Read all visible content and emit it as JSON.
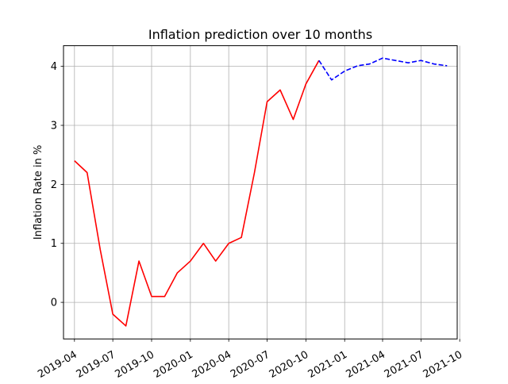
{
  "chart_data": {
    "type": "line",
    "title": "Inflation prediction over 10 months",
    "xlabel": "",
    "ylabel": "Inflation Rate in %",
    "grid": true,
    "ylim": [
      -0.62,
      4.35
    ],
    "xlim": [
      "2019-03-06",
      "2021-09-25"
    ],
    "yticks": [
      0,
      1,
      2,
      3,
      4
    ],
    "ytick_labels": [
      "0",
      "1",
      "2",
      "3",
      "4"
    ],
    "xticks": [
      "2019-04-01",
      "2019-07-01",
      "2019-10-01",
      "2020-01-01",
      "2020-04-01",
      "2020-07-01",
      "2020-10-01",
      "2021-01-01",
      "2021-04-01",
      "2021-07-01",
      "2021-10-01"
    ],
    "xtick_labels": [
      "2019-04",
      "2019-07",
      "2019-10",
      "2020-01",
      "2020-04",
      "2020-07",
      "2020-10",
      "2021-01",
      "2021-04",
      "2021-07",
      "2021-10"
    ],
    "series": [
      {
        "color": "#ff0000",
        "style": "solid",
        "x": [
          "2019-04-01",
          "2019-05-01",
          "2019-06-01",
          "2019-07-01",
          "2019-08-01",
          "2019-09-01",
          "2019-10-01",
          "2019-11-01",
          "2019-12-01",
          "2020-01-01",
          "2020-02-01",
          "2020-03-01",
          "2020-04-01",
          "2020-05-01",
          "2020-06-01",
          "2020-07-01",
          "2020-08-01",
          "2020-09-01",
          "2020-10-01",
          "2020-11-01"
        ],
        "values": [
          2.4,
          2.2,
          0.9,
          -0.2,
          -0.4,
          0.7,
          0.1,
          0.1,
          0.5,
          0.7,
          1.0,
          0.7,
          1.0,
          1.1,
          2.2,
          3.4,
          3.6,
          3.1,
          3.7,
          4.1
        ]
      },
      {
        "color": "#0000ff",
        "style": "dashed",
        "x": [
          "2020-11-01",
          "2020-12-01",
          "2021-01-01",
          "2021-02-01",
          "2021-03-01",
          "2021-04-01",
          "2021-05-01",
          "2021-06-01",
          "2021-07-01",
          "2021-08-01",
          "2021-09-01"
        ],
        "values": [
          4.1,
          3.77,
          3.92,
          4.01,
          4.04,
          4.14,
          4.1,
          4.06,
          4.1,
          4.04,
          4.01
        ]
      }
    ]
  }
}
